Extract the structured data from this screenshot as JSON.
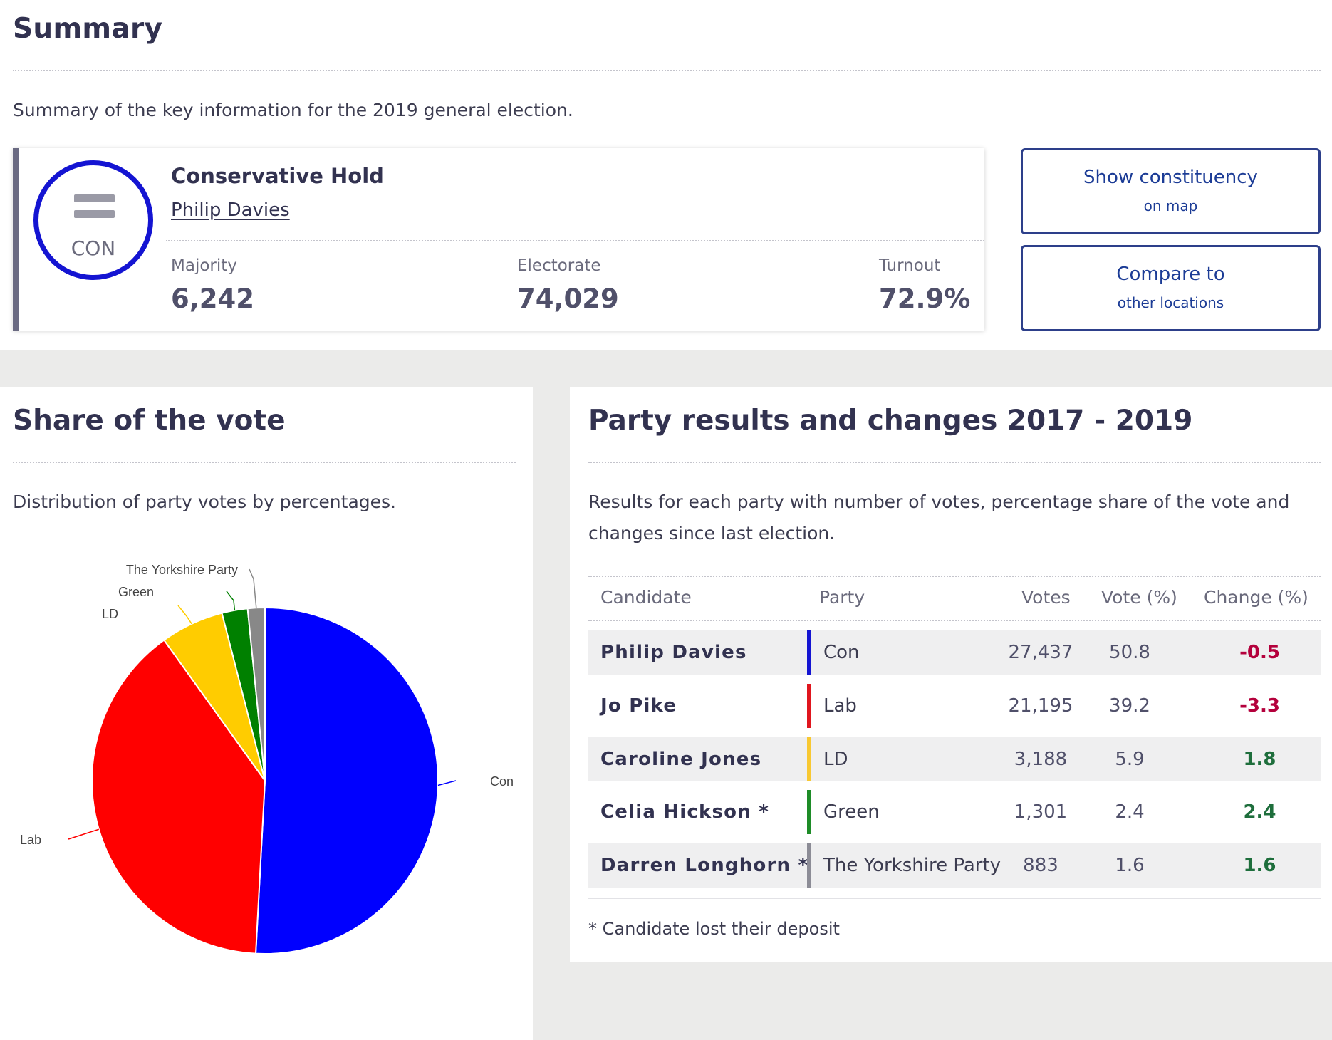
{
  "summary": {
    "title": "Summary",
    "description": "Summary of the key information for the 2019 general election."
  },
  "result": {
    "headline": "Conservative Hold",
    "winner": "Philip Davies",
    "party_abbrev": "CON",
    "party_color": "#1414d2",
    "stats": {
      "majority_label": "Majority",
      "majority_value": "6,242",
      "electorate_label": "Electorate",
      "electorate_value": "74,029",
      "turnout_label": "Turnout",
      "turnout_value": "72.9%"
    }
  },
  "actions": {
    "show_map_line1": "Show constituency",
    "show_map_line2": "on map",
    "compare_line1": "Compare to",
    "compare_line2": "other locations"
  },
  "share": {
    "title": "Share of the vote",
    "description": "Distribution of party votes by percentages."
  },
  "chart_data": {
    "type": "pie",
    "title": "",
    "categories": [
      "Con",
      "Lab",
      "LD",
      "Green",
      "The Yorkshire Party"
    ],
    "values": [
      50.8,
      39.2,
      5.9,
      2.4,
      1.6
    ],
    "colors": [
      "#0000ff",
      "#ff0000",
      "#ffcc00",
      "#008000",
      "#888888"
    ]
  },
  "results": {
    "title": "Party results and changes 2017 - 2019",
    "description_line1": "Results for each party with number of votes, percentage share of the vote and",
    "description_line2": "changes since last election.",
    "headers": {
      "candidate": "Candidate",
      "party": "Party",
      "votes": "Votes",
      "vote_pct": "Vote (%)",
      "change": "Change (%)"
    },
    "rows": [
      {
        "candidate": "Philip Davies",
        "party": "Con",
        "votes": "27,437",
        "vote_pct": "50.8",
        "change": "-0.5",
        "party_color": "#1414d2",
        "change_color": "#b4003c"
      },
      {
        "candidate": "Jo Pike",
        "party": "Lab",
        "votes": "21,195",
        "vote_pct": "39.2",
        "change": "-3.3",
        "party_color": "#e0161e",
        "change_color": "#b4003c"
      },
      {
        "candidate": "Caroline Jones",
        "party": "LD",
        "votes": "3,188",
        "vote_pct": "5.9",
        "change": "1.8",
        "party_color": "#f8c832",
        "change_color": "#1e6e3c"
      },
      {
        "candidate": "Celia Hickson *",
        "party": "Green",
        "votes": "1,301",
        "vote_pct": "2.4",
        "change": "2.4",
        "party_color": "#1e8c28",
        "change_color": "#1e6e3c"
      },
      {
        "candidate": "Darren Longhorn *",
        "party": "The Yorkshire Party",
        "votes": "883",
        "vote_pct": "1.6",
        "change": "1.6",
        "party_color": "#8c8c96",
        "change_color": "#1e6e3c"
      }
    ],
    "footnote": "* Candidate lost their deposit"
  }
}
